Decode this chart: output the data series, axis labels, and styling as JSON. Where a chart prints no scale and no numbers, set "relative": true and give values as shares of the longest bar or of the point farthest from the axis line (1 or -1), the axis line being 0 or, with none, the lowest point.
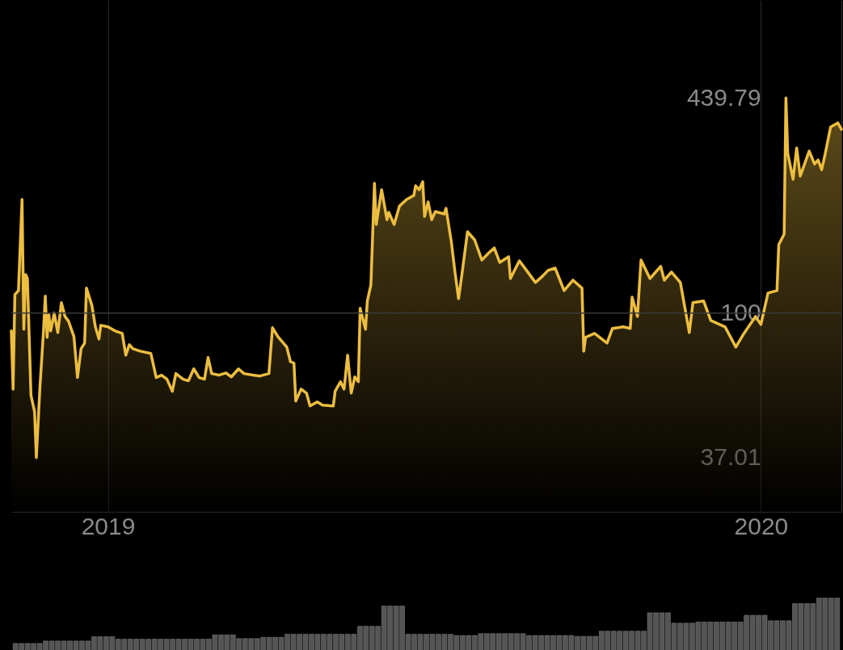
{
  "chart_data": [
    {
      "type": "area",
      "log": true,
      "grid": "x",
      "x": [
        "2018-11-08",
        "2018-11-09",
        "2018-11-10",
        "2018-11-12",
        "2018-11-14",
        "2018-11-15",
        "2018-11-16",
        "2018-11-17",
        "2018-11-19",
        "2018-11-21",
        "2018-11-22",
        "2018-11-24",
        "2018-11-26",
        "2018-11-27",
        "2018-11-28",
        "2018-11-29",
        "2018-11-30",
        "2018-12-02",
        "2018-12-04",
        "2018-12-06",
        "2018-12-08",
        "2018-12-10",
        "2018-12-13",
        "2018-12-15",
        "2018-12-17",
        "2018-12-19",
        "2018-12-20",
        "2018-12-23",
        "2018-12-25",
        "2018-12-27",
        "2018-12-28",
        "2019-01-01",
        "2019-01-05",
        "2019-01-09",
        "2019-01-11",
        "2019-01-13",
        "2019-01-15",
        "2019-01-19",
        "2019-01-25",
        "2019-01-28",
        "2019-01-31",
        "2019-02-03",
        "2019-02-06",
        "2019-02-08",
        "2019-02-12",
        "2019-02-15",
        "2019-02-18",
        "2019-02-21",
        "2019-02-24",
        "2019-02-26",
        "2019-02-28",
        "2019-03-04",
        "2019-03-08",
        "2019-03-11",
        "2019-03-15",
        "2019-03-18",
        "2019-03-23",
        "2019-03-27",
        "2019-04-01",
        "2019-04-03",
        "2019-04-06",
        "2019-04-11",
        "2019-04-13",
        "2019-04-15",
        "2019-04-16",
        "2019-04-19",
        "2019-04-22",
        "2019-04-24",
        "2019-04-28",
        "2019-05-01",
        "2019-05-07",
        "2019-05-08",
        "2019-05-11",
        "2019-05-13",
        "2019-05-15",
        "2019-05-17",
        "2019-05-19",
        "2019-05-21",
        "2019-05-22",
        "2019-05-25",
        "2019-05-26",
        "2019-05-28",
        "2019-05-30",
        "2019-05-31",
        "2019-06-03",
        "2019-06-06",
        "2019-06-07",
        "2019-06-10",
        "2019-06-13",
        "2019-06-17",
        "2019-06-21",
        "2019-06-22",
        "2019-06-24",
        "2019-06-26",
        "2019-06-27",
        "2019-06-29",
        "2019-07-01",
        "2019-07-03",
        "2019-07-08",
        "2019-07-09",
        "2019-07-12",
        "2019-07-14",
        "2019-07-16",
        "2019-07-18",
        "2019-07-21",
        "2019-07-25",
        "2019-07-29",
        "2019-08-02",
        "2019-08-05",
        "2019-08-08",
        "2019-08-13",
        "2019-08-14",
        "2019-08-19",
        "2019-08-23",
        "2019-08-28",
        "2019-09-01",
        "2019-09-04",
        "2019-09-08",
        "2019-09-13",
        "2019-09-18",
        "2019-09-23",
        "2019-09-24",
        "2019-09-25",
        "2019-09-30",
        "2019-10-07",
        "2019-10-10",
        "2019-10-16",
        "2019-10-20",
        "2019-10-21",
        "2019-10-24",
        "2019-10-26",
        "2019-10-31",
        "2019-11-06",
        "2019-11-08",
        "2019-11-12",
        "2019-11-17",
        "2019-11-22",
        "2019-11-24",
        "2019-11-30",
        "2019-12-04",
        "2019-12-12",
        "2019-12-18",
        "2019-12-22",
        "2019-12-29",
        "2020-01-01",
        "2020-01-05",
        "2020-01-10",
        "2020-01-11",
        "2020-01-14",
        "2020-01-15",
        "2020-01-16",
        "2020-01-19",
        "2020-01-21",
        "2020-01-23",
        "2020-01-28",
        "2020-01-31",
        "2020-02-02",
        "2020-02-04",
        "2020-02-06",
        "2020-02-09",
        "2020-02-13",
        "2020-02-15"
      ],
      "series": [
        {
          "color": "#ecbd3f",
          "values": [
            88.5,
            59.3,
            113.6,
            116.8,
            218.8,
            89.5,
            130.5,
            126.9,
            56.8,
            50.8,
            37.01,
            60.0,
            88.5,
            112.4,
            84.7,
            98.9,
            88.5,
            100.0,
            87.5,
            107.5,
            97.8,
            94.6,
            85.1,
            64.2,
            78.3,
            81.4,
            118.8,
            105.7,
            91.0,
            83.7,
            92.0,
            91.0,
            88.5,
            87.0,
            74.9,
            80.5,
            78.3,
            77.0,
            75.8,
            64.2,
            65.3,
            63.5,
            58.4,
            66.0,
            63.5,
            62.8,
            68.2,
            64.2,
            63.5,
            73.7,
            66.0,
            65.3,
            66.3,
            64.5,
            68.2,
            66.0,
            65.3,
            64.9,
            66.0,
            90.5,
            85.1,
            79.2,
            71.7,
            70.9,
            54.6,
            59.3,
            57.7,
            52.8,
            54.3,
            53.1,
            52.8,
            58.4,
            62.4,
            59.3,
            74.9,
            57.7,
            64.5,
            62.4,
            103.4,
            89.5,
            108.7,
            121.4,
            244.3,
            184.1,
            233.8,
            190.3,
            200.1,
            184.1,
            209.1,
            218.7,
            224.8,
            240.3,
            233.8,
            247.1,
            194.6,
            215.0,
            190.3,
            201.2,
            197.9,
            205.8,
            162.9,
            132.7,
            110.5,
            131.9,
            175.1,
            165.7,
            144.2,
            151.6,
            156.7,
            141.8,
            147.5,
            126.9,
            143.4,
            134.2,
            123.5,
            129.1,
            134.2,
            136.4,
            116.8,
            125.5,
            118.8,
            77.0,
            84.7,
            87.0,
            81.4,
            90.0,
            91.0,
            90.0,
            111.7,
            97.8,
            144.2,
            126.9,
            138.0,
            125.5,
            132.7,
            123.5,
            87.5,
            107.5,
            108.7,
            95.1,
            91.0,
            79.2,
            86.1,
            97.8,
            92.5,
            114.9,
            116.8,
            160.2,
            172.3,
            439.79,
            300.0,
            251.2,
            311.9,
            256.8,
            305.1,
            279.1,
            287.0,
            268.5,
            300.0,
            360.3,
            370.5,
            354.4
          ]
        }
      ],
      "xlim": [
        "2018-11-08",
        "2020-02-15"
      ],
      "xticks": [
        {
          "value": "2019-01-01",
          "label": "2019"
        },
        {
          "value": "2020-01-01",
          "label": "2020"
        }
      ],
      "ylim": [
        25.5,
        861
      ],
      "yticks": [
        37.01,
        100,
        439.79
      ],
      "ref_lines": [
        {
          "axis": "y",
          "value": 100
        }
      ]
    },
    {
      "type": "bar",
      "relative": true,
      "color": "#555555",
      "categories": [
        null,
        null,
        null,
        null,
        null,
        null,
        null,
        null,
        null,
        null,
        null,
        null,
        null,
        null,
        null,
        null,
        null,
        null,
        null,
        null,
        null,
        null,
        null,
        null,
        null,
        null,
        null,
        null,
        null,
        null,
        null,
        null,
        null,
        null,
        null,
        null,
        null,
        null,
        null,
        null,
        null,
        null,
        null,
        null,
        null,
        null,
        null,
        null,
        null,
        null,
        null,
        null,
        null,
        null,
        null,
        null,
        null,
        null,
        null,
        null,
        null,
        null,
        null,
        null,
        null,
        null,
        null,
        null,
        null,
        null,
        null,
        null,
        null,
        null,
        null,
        null,
        null,
        null,
        null,
        null,
        null,
        null,
        null,
        null,
        null,
        null,
        null,
        null,
        null,
        null,
        null,
        null,
        null,
        null,
        null,
        null,
        null,
        null,
        null,
        null,
        null,
        null,
        null,
        null,
        null,
        null,
        null,
        null,
        null,
        null,
        null,
        null,
        null,
        null,
        null,
        null,
        null,
        null,
        null,
        null,
        null,
        null,
        null,
        null,
        null,
        null,
        null,
        null,
        null,
        null,
        null,
        null,
        null,
        null,
        null,
        null,
        null
      ],
      "values": [
        0.26,
        0.26,
        0.26,
        0.26,
        0.26,
        0.3,
        0.3,
        0.3,
        0.3,
        0.3,
        0.3,
        0.3,
        0.3,
        0.37,
        0.37,
        0.37,
        0.37,
        0.33,
        0.33,
        0.33,
        0.33,
        0.33,
        0.33,
        0.33,
        0.33,
        0.33,
        0.33,
        0.33,
        0.33,
        0.33,
        0.33,
        0.33,
        0.33,
        0.4,
        0.4,
        0.4,
        0.4,
        0.34,
        0.34,
        0.34,
        0.34,
        0.36,
        0.36,
        0.36,
        0.36,
        0.41,
        0.41,
        0.41,
        0.41,
        0.41,
        0.41,
        0.41,
        0.41,
        0.41,
        0.41,
        0.41,
        0.41,
        0.54,
        0.54,
        0.54,
        0.54,
        0.87,
        0.87,
        0.87,
        0.87,
        0.41,
        0.41,
        0.41,
        0.41,
        0.41,
        0.41,
        0.41,
        0.41,
        0.39,
        0.39,
        0.39,
        0.39,
        0.42,
        0.42,
        0.42,
        0.42,
        0.42,
        0.42,
        0.42,
        0.42,
        0.39,
        0.39,
        0.39,
        0.39,
        0.39,
        0.39,
        0.39,
        0.39,
        0.375,
        0.375,
        0.375,
        0.375,
        0.46,
        0.46,
        0.46,
        0.46,
        0.46,
        0.46,
        0.46,
        0.46,
        0.76,
        0.76,
        0.76,
        0.76,
        0.59,
        0.59,
        0.59,
        0.59,
        0.61,
        0.61,
        0.61,
        0.61,
        0.61,
        0.61,
        0.61,
        0.61,
        0.72,
        0.72,
        0.72,
        0.72,
        0.63,
        0.63,
        0.63,
        0.63,
        0.91,
        0.91,
        0.91,
        0.91,
        1,
        1,
        1,
        1
      ]
    }
  ]
}
